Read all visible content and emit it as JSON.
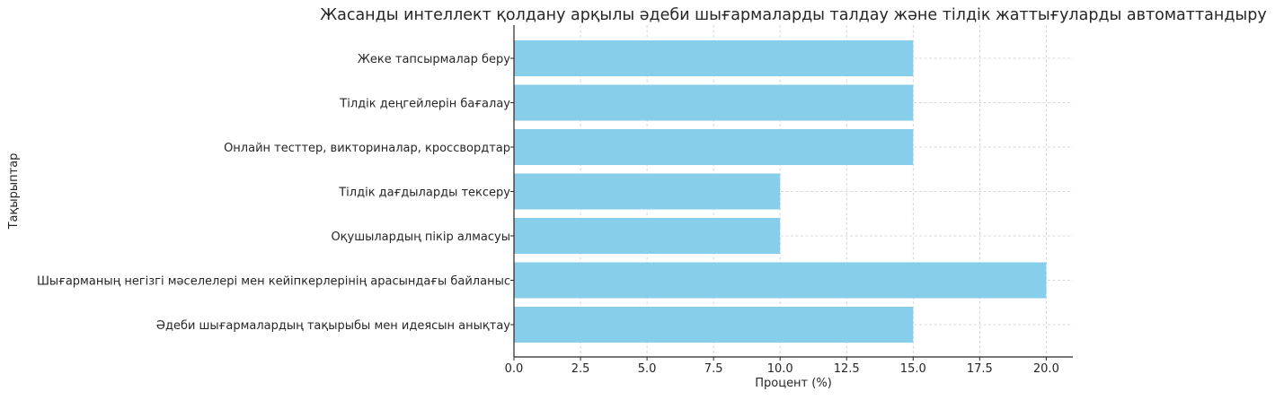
{
  "chart_data": {
    "type": "bar",
    "orientation": "horizontal",
    "title": "Жасанды интеллект қолдану арқылы әдеби шығармаларды талдау және тілдік жаттығуларды автоматтандыру",
    "xlabel": "Процент (%)",
    "ylabel": "Тақырыптар",
    "categories": [
      "Әдеби шығармалардың тақырыбы мен идеясын анықтау",
      "Шығарманың негізгі мәселелері мен кейіпкерлерінің арасындағы байланыс",
      "Оқушылардың пікір алмасуы",
      "Тілдік дағдыларды тексеру",
      "Онлайн тесттер, викториналар, кроссвордтар",
      "Тілдік деңгейлерін бағалау",
      "Жеке тапсырмалар беру"
    ],
    "values": [
      15,
      20,
      10,
      10,
      15,
      15,
      15
    ],
    "xlim": [
      0,
      21
    ],
    "xticks": [
      "0.0",
      "2.5",
      "5.0",
      "7.5",
      "10.0",
      "12.5",
      "15.0",
      "17.5",
      "20.0"
    ],
    "grid": true,
    "bar_color": "#87ceeb"
  }
}
